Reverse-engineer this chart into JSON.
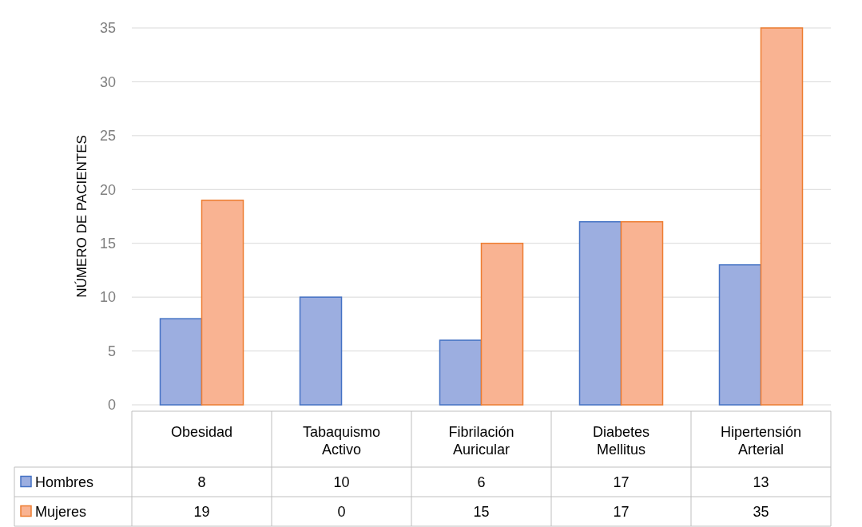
{
  "chart_data": {
    "type": "bar",
    "ylabel": "NÚMERO DE PACIENTES",
    "categories": [
      "Obesidad",
      "Tabaquismo Activo",
      "Fibrilación Auricular",
      "Diabetes Mellitus",
      "Hipertensión Arterial"
    ],
    "series": [
      {
        "name": "Hombres",
        "color": "#9caee0",
        "values": [
          8,
          10,
          6,
          17,
          13
        ]
      },
      {
        "name": "Mujeres",
        "color": "#f9b392",
        "values": [
          19,
          0,
          15,
          17,
          35
        ]
      }
    ],
    "ylim": [
      0,
      35
    ],
    "yticks": [
      0,
      5,
      10,
      15,
      20,
      25,
      30,
      35
    ],
    "grid": "y",
    "legend": "bottom",
    "data_labels": true
  }
}
